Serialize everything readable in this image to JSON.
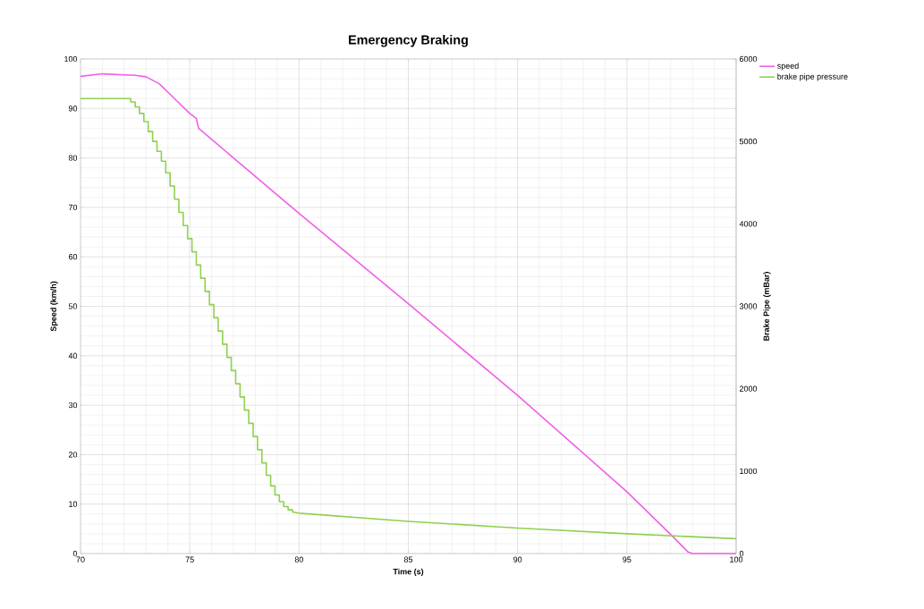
{
  "chart_data": {
    "type": "line",
    "title": "Emergency Braking",
    "xlabel": "Time (s)",
    "ylabel": "Speed (km/h)",
    "y2label": "Brake Pipe (mBar)",
    "xlim": [
      70,
      100
    ],
    "xticks": [
      70,
      75,
      80,
      85,
      90,
      95,
      100
    ],
    "ylim": [
      0,
      100
    ],
    "yticks": [
      0,
      10,
      20,
      30,
      40,
      50,
      60,
      70,
      80,
      90,
      100
    ],
    "y2lim": [
      0,
      6000
    ],
    "y2ticks": [
      0,
      1000,
      2000,
      3000,
      4000,
      5000,
      6000
    ],
    "grid": true,
    "legend": "right",
    "marker": "none",
    "line_style": "solid",
    "series": [
      {
        "name": "speed",
        "color": "#f060e8",
        "x": [
          70,
          71,
          72.5,
          73,
          73.6,
          74.3,
          75,
          75.3,
          75.4,
          77,
          80,
          85,
          90,
          95,
          97.2,
          97.8,
          98,
          100
        ],
        "values": [
          96.5,
          97,
          96.7,
          96.4,
          95,
          92,
          89,
          88,
          86,
          80,
          68.8,
          50.5,
          32,
          12.5,
          3,
          0.3,
          0,
          0
        ]
      },
      {
        "name": "brake pipe pressure",
        "color": "#8fd14f",
        "axis": "y2",
        "x": [
          70,
          72.1,
          72.3,
          72.3,
          72.5,
          72.5,
          72.7,
          72.7,
          72.9,
          72.9,
          73.1,
          73.1,
          73.3,
          73.3,
          73.5,
          73.5,
          73.7,
          73.7,
          73.9,
          73.9,
          74.1,
          74.1,
          74.3,
          74.3,
          74.5,
          74.5,
          74.7,
          74.7,
          74.9,
          74.9,
          75.1,
          75.1,
          75.3,
          75.3,
          75.5,
          75.5,
          75.7,
          75.7,
          75.9,
          75.9,
          76.1,
          76.1,
          76.3,
          76.3,
          76.5,
          76.5,
          76.7,
          76.7,
          76.9,
          76.9,
          77.1,
          77.1,
          77.3,
          77.3,
          77.5,
          77.5,
          77.7,
          77.7,
          77.9,
          77.9,
          78.1,
          78.1,
          78.3,
          78.3,
          78.5,
          78.5,
          78.7,
          78.7,
          78.9,
          78.9,
          79.1,
          79.1,
          79.3,
          79.3,
          79.5,
          79.5,
          79.7,
          79.7,
          80,
          85,
          90,
          95,
          100
        ],
        "values": [
          5520,
          5520,
          5520,
          5480,
          5480,
          5420,
          5420,
          5340,
          5340,
          5240,
          5240,
          5120,
          5120,
          5000,
          5000,
          4880,
          4880,
          4760,
          4760,
          4620,
          4620,
          4460,
          4460,
          4300,
          4300,
          4140,
          4140,
          3980,
          3980,
          3820,
          3820,
          3660,
          3660,
          3500,
          3500,
          3340,
          3340,
          3180,
          3180,
          3020,
          3020,
          2860,
          2860,
          2700,
          2700,
          2540,
          2540,
          2380,
          2380,
          2220,
          2220,
          2060,
          2060,
          1900,
          1900,
          1740,
          1740,
          1580,
          1580,
          1420,
          1420,
          1260,
          1260,
          1100,
          1100,
          950,
          950,
          820,
          820,
          710,
          710,
          630,
          630,
          570,
          570,
          530,
          530,
          505,
          490,
          390,
          310,
          240,
          180
        ]
      }
    ]
  }
}
